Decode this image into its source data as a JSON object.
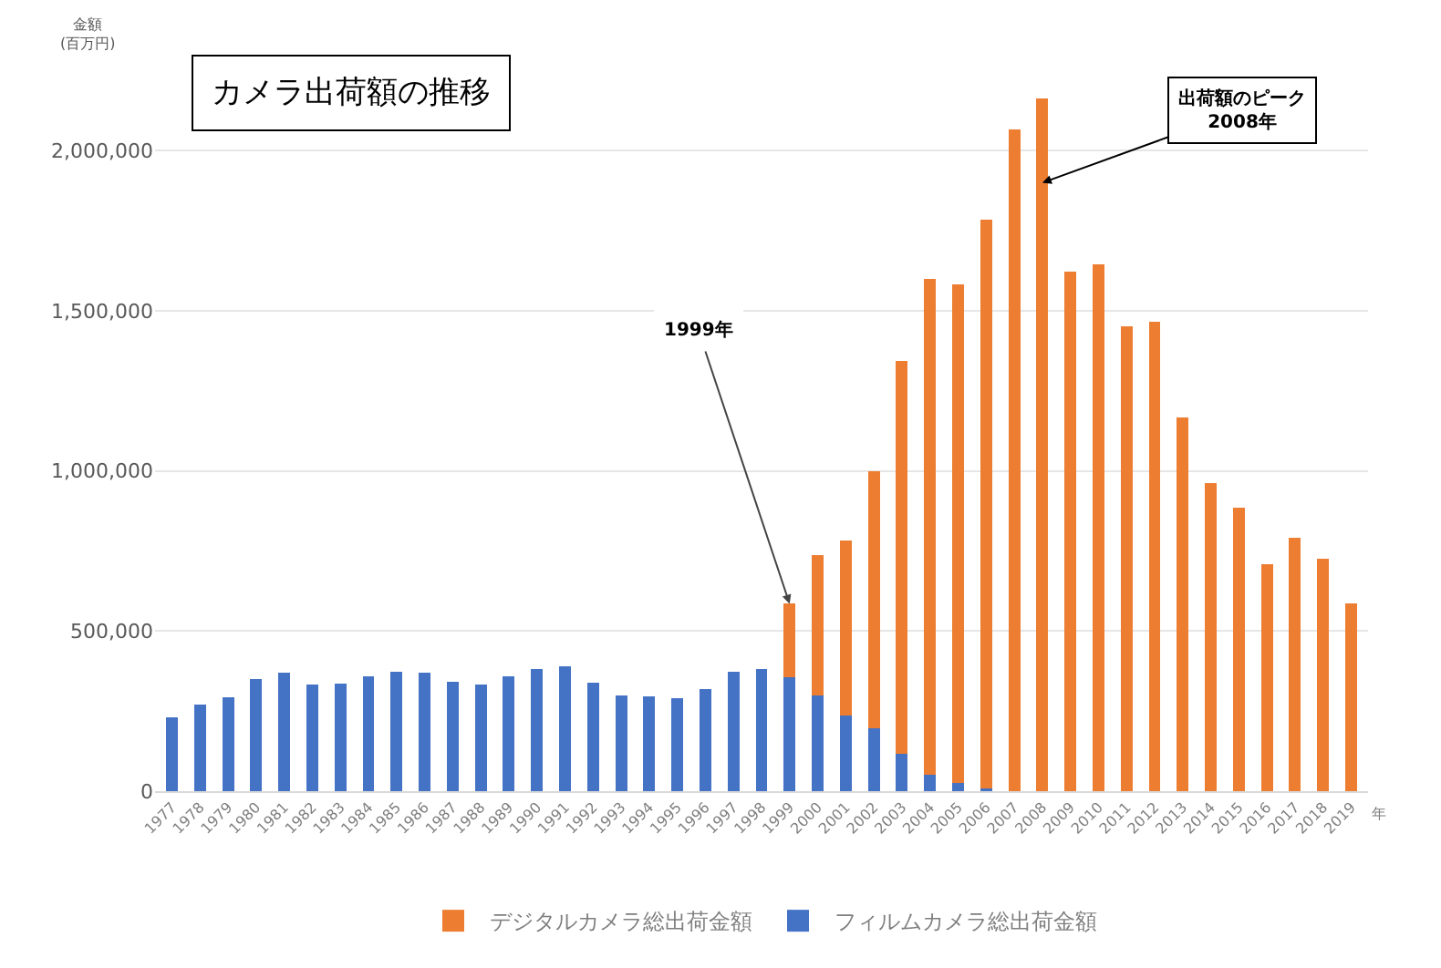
{
  "chart_data": {
    "type": "bar",
    "title": "カメラ出荷額の推移",
    "xlabel": "年",
    "ylabel": "金額\n(百万円)",
    "categories": [
      "1977",
      "1978",
      "1979",
      "1980",
      "1981",
      "1982",
      "1983",
      "1984",
      "1985",
      "1986",
      "1987",
      "1988",
      "1989",
      "1990",
      "1991",
      "1992",
      "1993",
      "1994",
      "1995",
      "1996",
      "1997",
      "1998",
      "1999",
      "2000",
      "2001",
      "2002",
      "2003",
      "2004",
      "2005",
      "2006",
      "2007",
      "2008",
      "2009",
      "2010",
      "2011",
      "2012",
      "2013",
      "2014",
      "2015",
      "2016",
      "2017",
      "2018",
      "2019"
    ],
    "stacked": true,
    "series": [
      {
        "name": "フィルムカメラ総出荷金額",
        "color": "#4472c4",
        "values": [
          232000,
          271000,
          294000,
          349000,
          370000,
          333000,
          335000,
          359000,
          373000,
          370000,
          343000,
          333000,
          359000,
          382000,
          391000,
          338000,
          299000,
          296000,
          291000,
          320000,
          373000,
          382000,
          356000,
          299000,
          236000,
          197000,
          118000,
          51000,
          25000,
          9000,
          0,
          0,
          0,
          0,
          0,
          0,
          0,
          0,
          0,
          0,
          0,
          0,
          0
        ]
      },
      {
        "name": "デジタルカメラ総出荷金額",
        "color": "#ed7d31",
        "values": [
          0,
          0,
          0,
          0,
          0,
          0,
          0,
          0,
          0,
          0,
          0,
          0,
          0,
          0,
          0,
          0,
          0,
          0,
          0,
          0,
          0,
          0,
          229000,
          439000,
          548000,
          801000,
          1227000,
          1550000,
          1558000,
          1777000,
          2066000,
          2164000,
          1622000,
          1645000,
          1451000,
          1467000,
          1168000,
          963000,
          884000,
          708000,
          792000,
          726000,
          585000
        ]
      }
    ],
    "ylim": [
      0,
      2300000
    ],
    "yticks": [
      {
        "value": 0,
        "label": "0"
      },
      {
        "value": 500000,
        "label": "500,000"
      },
      {
        "value": 1000000,
        "label": "1,000,000"
      },
      {
        "value": 1500000,
        "label": "1,500,000"
      },
      {
        "value": 2000000,
        "label": "2,000,000"
      }
    ],
    "grid": "y",
    "legend": "bottom",
    "annotations": [
      {
        "text": "1999年",
        "x": "1999",
        "y": 585000
      },
      {
        "text": "出荷額のピーク\n2008年",
        "x": "2008",
        "y": 1900000
      }
    ]
  }
}
